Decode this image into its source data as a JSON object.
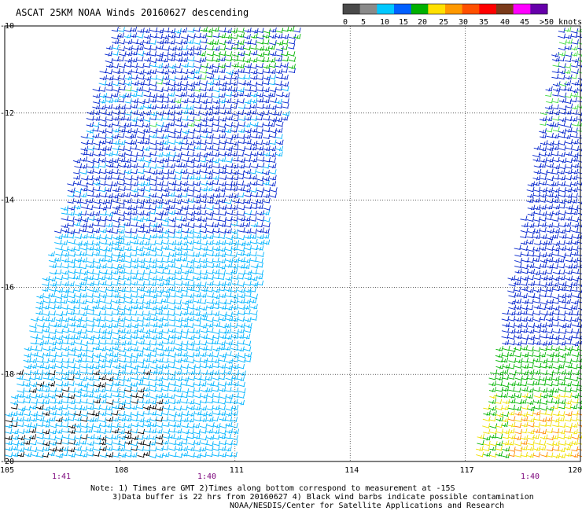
{
  "title": "ASCAT 25KM NOAA Winds 20160627 descending",
  "legend": {
    "labels": [
      "0",
      "5",
      "10",
      "15",
      "20",
      "25",
      "30",
      "35",
      "40",
      "45",
      ">50 knots"
    ],
    "colors": [
      "#4a4a4a",
      "#8a8a8a",
      "#00c8ff",
      "#0060ff",
      "#00b000",
      "#ffe000",
      "#ff9900",
      "#ff5000",
      "#ff0000",
      "#7a3a1a",
      "#ff00ff",
      "#6600aa"
    ]
  },
  "axes": {
    "lon_labels": [
      "105",
      "108",
      "111",
      "114",
      "117",
      "120"
    ],
    "lat_labels": [
      "-10",
      "-12",
      "-14",
      "-16",
      "-18",
      "-20"
    ],
    "time_labels": [
      "1:41",
      "1:40",
      "1:40"
    ]
  },
  "notes": {
    "line1": "Note: 1) Times are GMT 2)Times along bottom correspond to measurement at -15S",
    "line2": "3)Data buffer is 22 hrs from 20160627 4) Black wind barbs indicate possible contamination",
    "line3": "NOAA/NESDIS/Center for Satellite Applications and Research"
  },
  "swath_colors": {
    "light_blue": "#00b4ff",
    "dark_blue": "#0022cc",
    "green": "#00b400",
    "light_green": "#44dd44",
    "yellow": "#f0e000",
    "orange": "#ff8800",
    "black": "#000000"
  }
}
